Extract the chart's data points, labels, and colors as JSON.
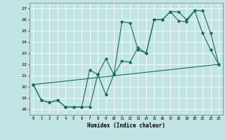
{
  "xlabel": "Humidex (Indice chaleur)",
  "xlim": [
    -0.5,
    23.5
  ],
  "ylim": [
    17.5,
    27.5
  ],
  "yticks": [
    18,
    19,
    20,
    21,
    22,
    23,
    24,
    25,
    26,
    27
  ],
  "xticks": [
    0,
    1,
    2,
    3,
    4,
    5,
    6,
    7,
    8,
    9,
    10,
    11,
    12,
    13,
    14,
    15,
    16,
    17,
    18,
    19,
    20,
    21,
    22,
    23
  ],
  "bg_color": "#c2e4e4",
  "grid_color": "#ffffff",
  "line_color": "#1a6b5a",
  "line1_x": [
    0,
    1,
    2,
    3,
    4,
    5,
    6,
    7,
    8,
    9,
    10,
    11,
    12,
    13,
    14,
    15,
    16,
    17,
    18,
    19,
    20,
    21,
    22,
    23
  ],
  "line1_y": [
    20.2,
    18.8,
    18.6,
    18.8,
    18.2,
    18.2,
    18.2,
    18.2,
    21.1,
    19.3,
    21.1,
    22.3,
    22.2,
    23.5,
    23.0,
    26.0,
    26.0,
    26.7,
    26.7,
    26.0,
    26.8,
    24.8,
    23.3,
    22.0
  ],
  "line2_x": [
    0,
    1,
    2,
    3,
    4,
    5,
    6,
    7,
    8,
    9,
    10,
    11,
    12,
    13,
    14,
    15,
    16,
    17,
    18,
    19,
    20,
    21,
    22,
    23
  ],
  "line2_y": [
    20.2,
    18.8,
    18.6,
    18.8,
    18.2,
    18.2,
    18.2,
    21.5,
    21.1,
    22.5,
    21.1,
    25.8,
    25.7,
    23.3,
    23.0,
    26.0,
    26.0,
    26.7,
    25.9,
    25.8,
    26.8,
    26.8,
    24.8,
    22.0
  ],
  "line3_x": [
    0,
    23
  ],
  "line3_y": [
    20.2,
    22.0
  ]
}
